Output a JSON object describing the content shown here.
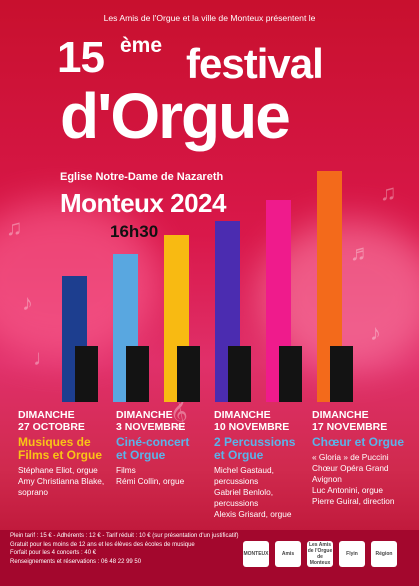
{
  "header": {
    "intro": "Les Amis de l'Orgue et la ville de Monteux présentent le",
    "number": "15",
    "suffix": "ème",
    "festival": "festival",
    "name": "d'Orgue"
  },
  "venue": {
    "church": "Eglise Notre-Dame de Nazareth",
    "city_year": "Monteux 2024",
    "time": "16h30"
  },
  "bar_colors": [
    "#1d3e8f",
    "#59a7e0",
    "#f8ba12",
    "#4b2cb0",
    "#ef1b8c",
    "#f36a1b"
  ],
  "bar_levels": [
    0.53,
    0.62,
    0.7,
    0.76,
    0.85,
    0.97
  ],
  "concerts": [
    {
      "day": "DIMANCHE",
      "date": "27 OCTOBRE",
      "title_lines": [
        "Musiques de",
        "Films et Orgue"
      ],
      "title_color": "#f9c416",
      "details": [
        "Stéphane Eliot, orgue",
        "Amy Christianna Blake,",
        "soprano"
      ]
    },
    {
      "day": "DIMANCHE",
      "date": "3 NOVEMBRE",
      "title_lines": [
        "Ciné-concert",
        "et Orgue"
      ],
      "title_color": "#5ab4ea",
      "details": [
        "Films",
        "Rémi Collin, orgue"
      ]
    },
    {
      "day": "DIMANCHE",
      "date": "10 NOVEMBRE",
      "title_lines": [
        "2 Percussions",
        "et Orgue"
      ],
      "title_color": "#5ab4ea",
      "details": [
        "Michel Gastaud,",
        "percussions",
        "Gabriel Benlolo,",
        "percussions",
        "Alexis Grisard, orgue"
      ]
    },
    {
      "day": "DIMANCHE",
      "date": "17 NOVEMBRE",
      "title_lines": [
        "Chœur et Orgue"
      ],
      "title_color": "#5ab4ea",
      "details": [
        "« Gloria » de Puccini",
        "Chœur Opéra Grand",
        "Avignon",
        "Luc Antonini, orgue",
        "Pierre Guiral, direction"
      ]
    }
  ],
  "info": [
    "Plein tarif : 15 € - Adhérents : 12 € - Tarif réduit : 10 € (sur présentation d'un justificatif)",
    "Gratuit pour les moins de 12 ans et les élèves des écoles de musique",
    "Forfait pour les 4 concerts : 40 €",
    "Renseignements et réservations : 06 48 22 99 50"
  ],
  "logos": [
    "MONTEUX",
    "Amis",
    "Les Amis de l'Orgue de Monteux",
    "Flyin",
    "Région"
  ],
  "icons": [
    "music-note-icon"
  ]
}
